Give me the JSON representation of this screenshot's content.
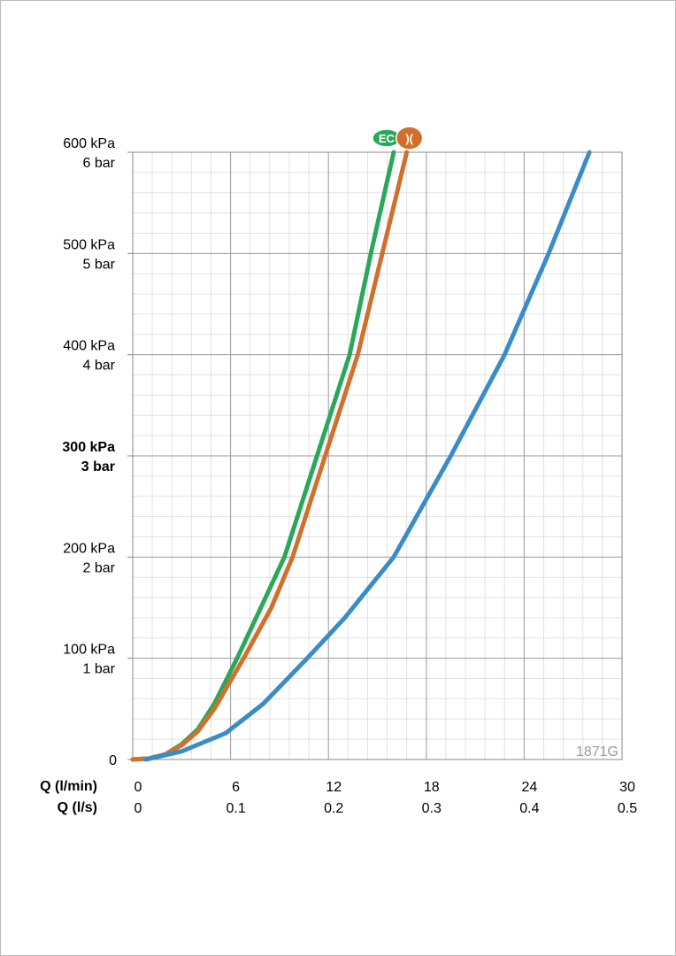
{
  "chart_data": {
    "type": "line",
    "xlabel": "Q (l/min)",
    "x2label": "Q (l/s)",
    "xlim": [
      0,
      30
    ],
    "xticks": [
      0,
      6,
      12,
      18,
      24,
      30
    ],
    "x2lim": [
      0,
      0.5
    ],
    "x2ticks": [
      0,
      0.1,
      0.2,
      0.3,
      0.4,
      0.5
    ],
    "ylim": [
      0,
      600
    ],
    "yticks": [
      0,
      {
        "value": 100,
        "label": "100 kPa",
        "sublabel": "1 bar"
      },
      {
        "value": 200,
        "label": "200 kPa",
        "sublabel": "2 bar"
      },
      {
        "value": 300,
        "label": "300 kPa",
        "sublabel": "3 bar"
      },
      {
        "value": 400,
        "label": "400 kPa",
        "sublabel": "4 bar"
      },
      {
        "value": 500,
        "label": "500 kPa",
        "sublabel": "5 bar"
      },
      {
        "value": 600,
        "label": "600 kPa",
        "sublabel": "6 bar"
      }
    ],
    "bold_tick": 300,
    "grid": true,
    "watermark": "1871G",
    "series": [
      {
        "name": "EC",
        "color": "#2aa85a",
        "x": [
          0,
          1,
          2,
          3,
          4,
          5,
          6.4,
          8,
          9.3,
          11.3,
          13.3,
          14.6,
          16.0
        ],
        "values": [
          0,
          1,
          5,
          15,
          30,
          55,
          100,
          155,
          200,
          300,
          400,
          500,
          600
        ]
      },
      {
        "name": ")(",
        "color": "#d0702c",
        "x": [
          0,
          1,
          2,
          3,
          4,
          5,
          6.8,
          8.5,
          9.8,
          11.8,
          13.8,
          15.3,
          16.8
        ],
        "values": [
          0,
          1,
          5,
          14,
          28,
          50,
          100,
          150,
          200,
          300,
          400,
          500,
          600
        ]
      },
      {
        "color": "#3a8cc9",
        "x": [
          0.8,
          3,
          5.7,
          8,
          10.7,
          13,
          16,
          19.5,
          22.8,
          25.5,
          28
        ],
        "values": [
          0,
          8,
          26,
          55,
          100,
          140,
          200,
          300,
          400,
          500,
          600
        ]
      }
    ]
  }
}
